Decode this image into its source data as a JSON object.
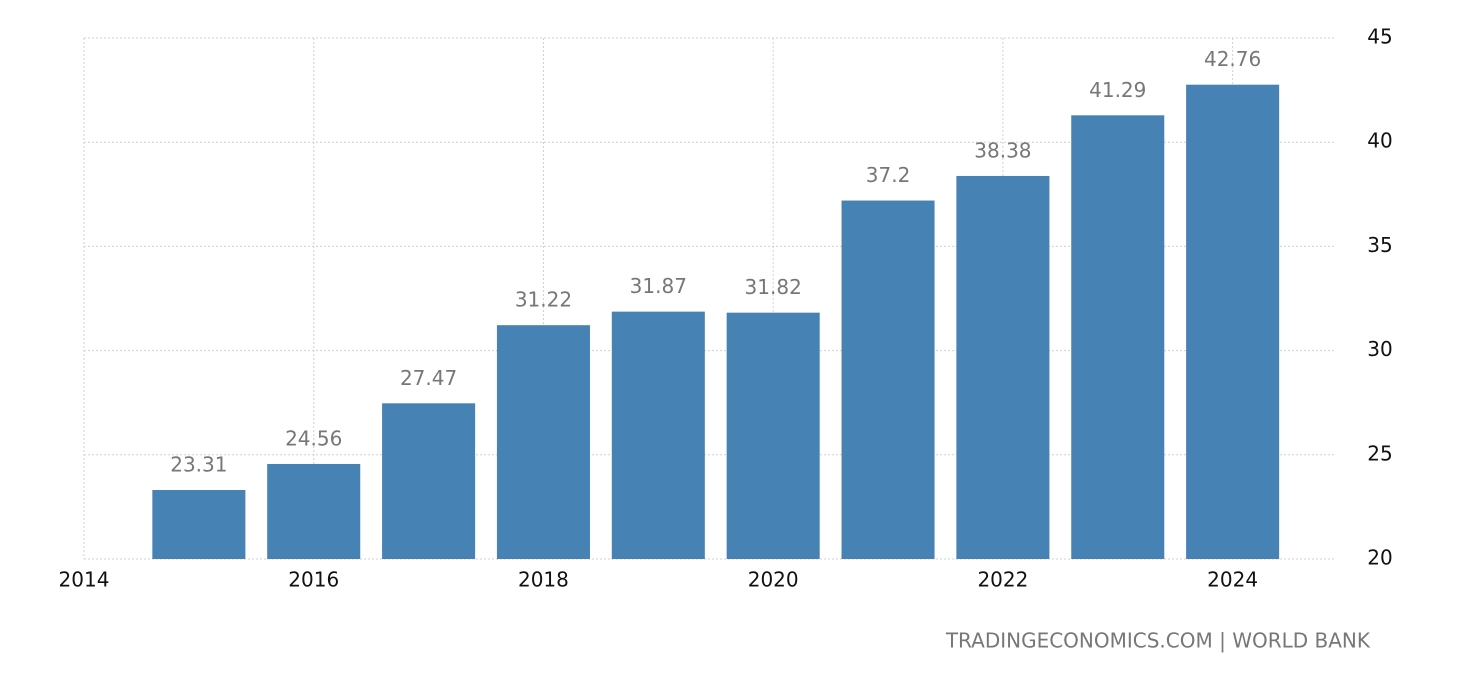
{
  "chart_data": {
    "type": "bar",
    "x": [
      2015,
      2016,
      2017,
      2018,
      2019,
      2020,
      2021,
      2022,
      2023,
      2024
    ],
    "values": [
      23.31,
      24.56,
      27.47,
      31.22,
      31.87,
      31.82,
      37.2,
      38.38,
      41.29,
      42.76
    ],
    "color": "#4682b4",
    "xlim": [
      2014,
      2024.9
    ],
    "xticks": [
      2014,
      2016,
      2018,
      2020,
      2022,
      2024
    ],
    "ylim": [
      20,
      45
    ],
    "yticks": [
      20,
      25,
      30,
      35,
      40,
      45
    ],
    "grid": true,
    "source": "TRADINGECONOMICS.COM | WORLD BANK"
  }
}
